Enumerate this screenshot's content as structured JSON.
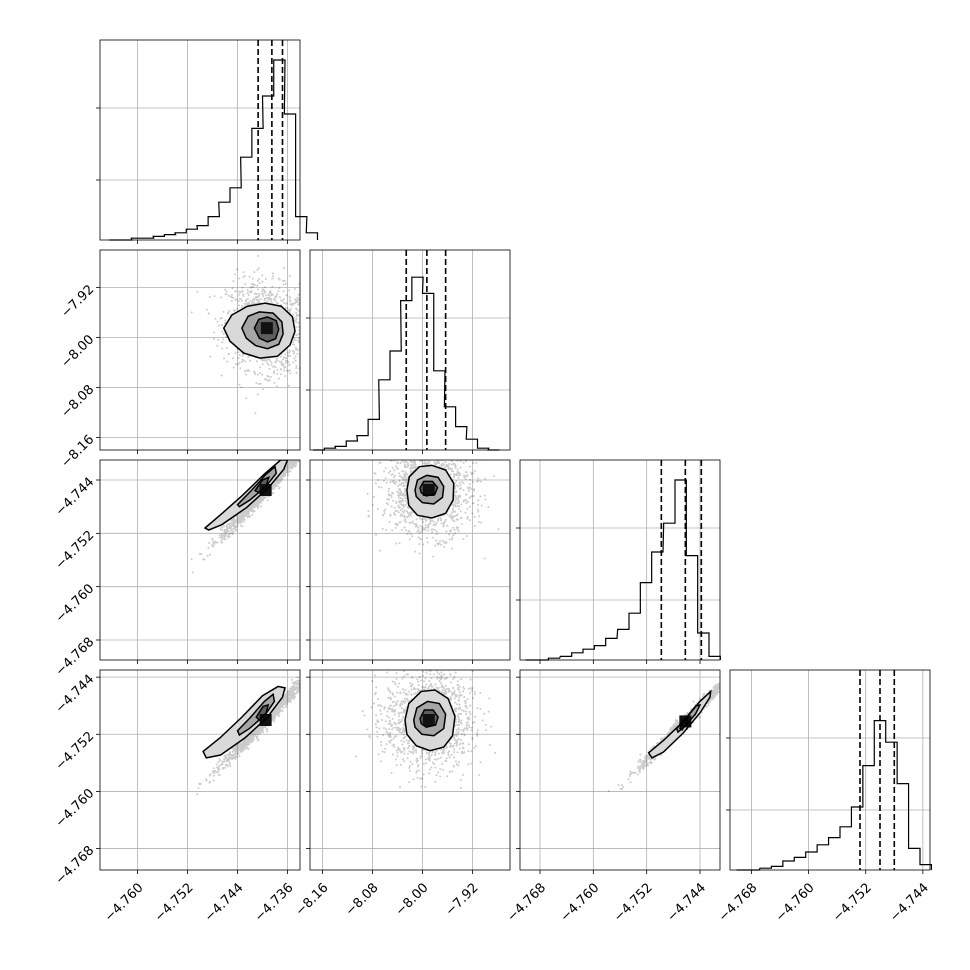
{
  "chart_data": {
    "type": "corner",
    "grid": true,
    "parameters": [
      {
        "range": [
          -4.766,
          -4.734
        ],
        "ticks": [
          -4.76,
          -4.752,
          -4.744,
          -4.736
        ],
        "tick_labels": [
          "−4.760",
          "−4.752",
          "−4.744",
          "−4.736"
        ],
        "quantiles": [
          -4.7407,
          -4.7385,
          -4.7368
        ],
        "hist_x": [
          -4.7636,
          -4.7618,
          -4.7601,
          -4.7583,
          -4.7566,
          -4.7548,
          -4.7531,
          -4.7513,
          -4.7496,
          -4.7478,
          -4.7461,
          -4.7443,
          -4.7426,
          -4.7408,
          -4.7391,
          -4.7373,
          -4.7356,
          -4.7338,
          -4.7321
        ],
        "hist_y": [
          0,
          0,
          0.01,
          0.01,
          0.02,
          0.03,
          0.04,
          0.06,
          0.08,
          0.13,
          0.21,
          0.29,
          0.46,
          0.62,
          0.8,
          1,
          0.7,
          0.13,
          0.04
        ]
      },
      {
        "range": [
          -8.18,
          -7.86
        ],
        "ticks": [
          -8.16,
          -8.08,
          -8.0,
          -7.92
        ],
        "tick_labels": [
          "−8.16",
          "−8.08",
          "−8.00",
          "−7.92"
        ],
        "quantiles": [
          -8.026,
          -7.993,
          -7.963
        ],
        "hist_x": [
          -8.166,
          -8.148,
          -8.131,
          -8.113,
          -8.096,
          -8.078,
          -8.061,
          -8.043,
          -8.026,
          -8.008,
          -7.991,
          -7.973,
          -7.956,
          -7.938,
          -7.921,
          -7.903,
          -7.886
        ],
        "hist_y": [
          0,
          0.01,
          0.02,
          0.05,
          0.08,
          0.17,
          0.39,
          0.55,
          0.83,
          0.96,
          0.87,
          0.44,
          0.24,
          0.13,
          0.06,
          0.01,
          0
        ]
      },
      {
        "range": [
          -4.771,
          -4.741
        ],
        "ticks": [
          -4.768,
          -4.76,
          -4.752,
          -4.744
        ],
        "tick_labels": [
          "−4.768",
          "−4.760",
          "−4.752",
          "−4.744"
        ],
        "quantiles": [
          -4.7498,
          -4.7462,
          -4.7438
        ],
        "hist_x": [
          -4.7693,
          -4.7676,
          -4.7659,
          -4.7641,
          -4.7624,
          -4.7607,
          -4.759,
          -4.7573,
          -4.7555,
          -4.7538,
          -4.7521,
          -4.7504,
          -4.7486,
          -4.7469,
          -4.7452,
          -4.7435,
          -4.7418
        ],
        "hist_y": [
          0,
          0,
          0.01,
          0.02,
          0.04,
          0.06,
          0.08,
          0.12,
          0.17,
          0.26,
          0.43,
          0.6,
          0.76,
          1,
          0.58,
          0.15,
          0.02
        ]
      },
      {
        "range": [
          -4.771,
          -4.743
        ],
        "ticks": [
          -4.768,
          -4.76,
          -4.752,
          -4.744
        ],
        "tick_labels": [
          "−4.768",
          "−4.760",
          "−4.752",
          "−4.744"
        ],
        "quantiles": [
          -4.7528,
          -4.75,
          -4.748
        ],
        "hist_x": [
          -4.7693,
          -4.7677,
          -4.766,
          -4.7644,
          -4.7628,
          -4.7612,
          -4.7596,
          -4.758,
          -4.7564,
          -4.7548,
          -4.7532,
          -4.7516,
          -4.75,
          -4.7484,
          -4.7468,
          -4.7452,
          -4.7436
        ],
        "hist_y": [
          0,
          0,
          0.01,
          0.02,
          0.05,
          0.07,
          0.1,
          0.14,
          0.18,
          0.24,
          0.35,
          0.58,
          0.83,
          0.71,
          0.48,
          0.12,
          0.03
        ]
      }
    ],
    "pairs": [
      {
        "row": 1,
        "col": 0,
        "mean": [
          -4.7393,
          -7.985
        ],
        "sd": [
          0.0032,
          0.035
        ],
        "corr": -0.15,
        "contours": [
          [
            [
              -4.7462,
              -7.985
            ],
            [
              -4.7449,
              -7.964
            ],
            [
              -4.7424,
              -7.95
            ],
            [
              -4.7396,
              -7.945
            ],
            [
              -4.737,
              -7.95
            ],
            [
              -4.7352,
              -7.967
            ],
            [
              -4.7348,
              -7.99
            ],
            [
              -4.7356,
              -8.012
            ],
            [
              -4.7376,
              -8.03
            ],
            [
              -4.7404,
              -8.033
            ],
            [
              -4.743,
              -8.025
            ],
            [
              -4.7452,
              -8.006
            ]
          ],
          [
            [
              -4.7433,
              -7.985
            ],
            [
              -4.7423,
              -7.966
            ],
            [
              -4.7405,
              -7.959
            ],
            [
              -4.7383,
              -7.961
            ],
            [
              -4.7369,
              -7.975
            ],
            [
              -4.7367,
              -7.994
            ],
            [
              -4.7374,
              -8.011
            ],
            [
              -4.7392,
              -8.018
            ],
            [
              -4.7411,
              -8.013
            ],
            [
              -4.7426,
              -8.001
            ]
          ],
          [
            [
              -4.7413,
              -7.985
            ],
            [
              -4.7406,
              -7.971
            ],
            [
              -4.7392,
              -7.967
            ],
            [
              -4.7378,
              -7.973
            ],
            [
              -4.7374,
              -7.987
            ],
            [
              -4.7379,
              -8.002
            ],
            [
              -4.7392,
              -8.007
            ],
            [
              -4.7405,
              -8.001
            ]
          ]
        ]
      },
      {
        "row": 2,
        "col": 0,
        "mean": [
          -4.7395,
          -4.7455
        ],
        "sd": [
          0.0035,
          0.0035
        ],
        "corr": 0.985,
        "contours": [
          [
            [
              -4.7492,
              -4.7512
            ],
            [
              -4.7467,
              -4.7492
            ],
            [
              -4.7432,
              -4.7463
            ],
            [
              -4.7397,
              -4.7431
            ],
            [
              -4.7371,
              -4.741
            ],
            [
              -4.736,
              -4.741
            ],
            [
              -4.7366,
              -4.7424
            ],
            [
              -4.739,
              -4.7451
            ],
            [
              -4.7425,
              -4.7481
            ],
            [
              -4.7465,
              -4.7507
            ],
            [
              -4.7486,
              -4.7515
            ]
          ],
          [
            [
              -4.744,
              -4.7477
            ],
            [
              -4.7418,
              -4.7456
            ],
            [
              -4.7395,
              -4.7432
            ],
            [
              -4.738,
              -4.742
            ],
            [
              -4.7378,
              -4.743
            ],
            [
              -4.7395,
              -4.745
            ],
            [
              -4.742,
              -4.747
            ],
            [
              -4.7437,
              -4.748
            ]
          ],
          [
            [
              -4.7412,
              -4.7456
            ],
            [
              -4.74,
              -4.744
            ],
            [
              -4.739,
              -4.7436
            ],
            [
              -4.7394,
              -4.7448
            ],
            [
              -4.7405,
              -4.7459
            ]
          ]
        ]
      },
      {
        "row": 2,
        "col": 1,
        "mean": [
          -7.99,
          -4.7455
        ],
        "sd": [
          0.035,
          0.0034
        ],
        "corr": 0.0,
        "contours": [
          [
            [
              -8.025,
              -4.7455
            ],
            [
              -8.021,
              -4.7435
            ],
            [
              -8.005,
              -4.742
            ],
            [
              -7.985,
              -4.7418
            ],
            [
              -7.963,
              -4.7425
            ],
            [
              -7.95,
              -4.7445
            ],
            [
              -7.951,
              -4.747
            ],
            [
              -7.963,
              -4.749
            ],
            [
              -7.985,
              -4.7497
            ],
            [
              -8.008,
              -4.7493
            ],
            [
              -8.022,
              -4.7478
            ]
          ],
          [
            [
              -8.012,
              -4.7455
            ],
            [
              -8.008,
              -4.744
            ],
            [
              -7.993,
              -4.7433
            ],
            [
              -7.975,
              -4.7436
            ],
            [
              -7.966,
              -4.745
            ],
            [
              -7.968,
              -4.7466
            ],
            [
              -7.982,
              -4.7476
            ],
            [
              -8.0,
              -4.7474
            ],
            [
              -8.01,
              -4.7465
            ]
          ],
          [
            [
              -8.004,
              -4.7452
            ],
            [
              -7.998,
              -4.7442
            ],
            [
              -7.984,
              -4.7442
            ],
            [
              -7.976,
              -4.7451
            ],
            [
              -7.98,
              -4.7461
            ],
            [
              -7.994,
              -4.7464
            ],
            [
              -8.002,
              -4.7459
            ]
          ]
        ]
      },
      {
        "row": 3,
        "col": 0,
        "mean": [
          -4.7395,
          -4.75
        ],
        "sd": [
          0.0035,
          0.0032
        ],
        "corr": 0.985,
        "contours": [
          [
            [
              -4.7495,
              -4.7544
            ],
            [
              -4.7468,
              -4.7525
            ],
            [
              -4.7433,
              -4.7496
            ],
            [
              -4.74,
              -4.7466
            ],
            [
              -4.7375,
              -4.7453
            ],
            [
              -4.7364,
              -4.7455
            ],
            [
              -4.7368,
              -4.7468
            ],
            [
              -4.7393,
              -4.7497
            ],
            [
              -4.7428,
              -4.7525
            ],
            [
              -4.7467,
              -4.7549
            ],
            [
              -4.749,
              -4.7553
            ]
          ],
          [
            [
              -4.744,
              -4.7515
            ],
            [
              -4.742,
              -4.7497
            ],
            [
              -4.7397,
              -4.7474
            ],
            [
              -4.7383,
              -4.7464
            ],
            [
              -4.7381,
              -4.7474
            ],
            [
              -4.7396,
              -4.7493
            ],
            [
              -4.7421,
              -4.7512
            ],
            [
              -4.7437,
              -4.7521
            ]
          ],
          [
            [
              -4.741,
              -4.7496
            ],
            [
              -4.7399,
              -4.7481
            ],
            [
              -4.7391,
              -4.7479
            ],
            [
              -4.7394,
              -4.749
            ],
            [
              -4.7405,
              -4.75
            ]
          ]
        ]
      },
      {
        "row": 3,
        "col": 1,
        "mean": [
          -7.99,
          -4.75
        ],
        "sd": [
          0.035,
          0.0034
        ],
        "corr": 0.0,
        "contours": [
          [
            [
              -8.028,
              -4.75
            ],
            [
              -8.022,
              -4.7477
            ],
            [
              -8.002,
              -4.746
            ],
            [
              -7.98,
              -4.7458
            ],
            [
              -7.959,
              -4.747
            ],
            [
              -7.948,
              -4.7495
            ],
            [
              -7.952,
              -4.7522
            ],
            [
              -7.966,
              -4.7538
            ],
            [
              -7.988,
              -4.7543
            ],
            [
              -8.01,
              -4.7536
            ],
            [
              -8.025,
              -4.752
            ]
          ],
          [
            [
              -8.014,
              -4.75
            ],
            [
              -8.009,
              -4.7483
            ],
            [
              -7.992,
              -4.7474
            ],
            [
              -7.973,
              -4.7477
            ],
            [
              -7.963,
              -4.7492
            ],
            [
              -7.966,
              -4.7512
            ],
            [
              -7.982,
              -4.7522
            ],
            [
              -8.001,
              -4.752
            ],
            [
              -8.012,
              -4.751
            ]
          ],
          [
            [
              -8.004,
              -4.7498
            ],
            [
              -7.997,
              -4.7486
            ],
            [
              -7.983,
              -4.7486
            ],
            [
              -7.975,
              -4.7496
            ],
            [
              -7.979,
              -4.7507
            ],
            [
              -7.994,
              -4.751
            ],
            [
              -8.002,
              -4.7505
            ]
          ]
        ]
      },
      {
        "row": 3,
        "col": 2,
        "mean": [
          -4.7462,
          -4.7502
        ],
        "sd": [
          0.0034,
          0.0032
        ],
        "corr": 0.99,
        "contours": [
          [
            [
              -4.7517,
              -4.7546
            ],
            [
              -4.7494,
              -4.7528
            ],
            [
              -4.7465,
              -4.7502
            ],
            [
              -4.744,
              -4.7474
            ],
            [
              -4.7424,
              -4.746
            ],
            [
              -4.7425,
              -4.7468
            ],
            [
              -4.744,
              -4.749
            ],
            [
              -4.7465,
              -4.7518
            ],
            [
              -4.7495,
              -4.7545
            ],
            [
              -4.7512,
              -4.7553
            ]
          ],
          [
            [
              -4.7475,
              -4.7512
            ],
            [
              -4.746,
              -4.7496
            ],
            [
              -4.7446,
              -4.748
            ],
            [
              -4.744,
              -4.7479
            ],
            [
              -4.7447,
              -4.7492
            ],
            [
              -4.7462,
              -4.7508
            ],
            [
              -4.7473,
              -4.7517
            ]
          ],
          [
            [
              -4.747,
              -4.7512
            ],
            [
              -4.7464,
              -4.75
            ],
            [
              -4.7459,
              -4.7497
            ],
            [
              -4.7461,
              -4.7506
            ],
            [
              -4.7467,
              -4.7514
            ]
          ]
        ]
      }
    ]
  }
}
